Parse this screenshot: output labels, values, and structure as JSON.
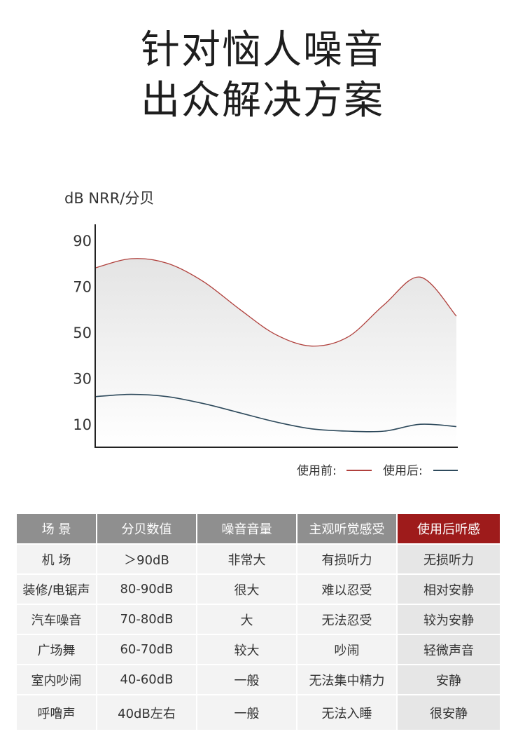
{
  "headline": {
    "line1": "针对恼人噪音",
    "line2": "出众解决方案"
  },
  "chart_data": {
    "type": "area",
    "ylabel": "dB NRR/分贝",
    "yticks": [
      90,
      70,
      50,
      30,
      10
    ],
    "ylim": [
      0,
      100
    ],
    "x": [
      0,
      1,
      2,
      3,
      4,
      5,
      6,
      7,
      8,
      9,
      10
    ],
    "series": [
      {
        "name": "使用前:",
        "color": "#b0403c",
        "values": [
          78,
          82,
          80,
          72,
          60,
          49,
          44,
          48,
          62,
          74,
          57
        ]
      },
      {
        "name": "使用后:",
        "color": "#2e4a5c",
        "values": [
          22,
          23,
          22,
          19,
          15,
          11,
          8,
          7,
          7,
          10,
          9
        ]
      }
    ],
    "legend": "bottom-right",
    "grid": false
  },
  "table": {
    "headers": [
      "场  景",
      "分贝数值",
      "噪音音量",
      "主观听觉感受",
      "使用后听感"
    ],
    "highlight_color": "#9e1b1b",
    "rows": [
      [
        "机  场",
        "＞90dB",
        "非常大",
        "有损听力",
        "无损听力"
      ],
      [
        "装修/电锯声",
        "80-90dB",
        "很大",
        "难以忍受",
        "相对安静"
      ],
      [
        "汽车噪音",
        "70-80dB",
        "大",
        "无法忍受",
        "较为安静"
      ],
      [
        "广场舞",
        "60-70dB",
        "较大",
        "吵闹",
        "轻微声音"
      ],
      [
        "室内吵闹",
        "40-60dB",
        "一般",
        "无法集中精力",
        "安静"
      ],
      [
        "呼噜声",
        "40dB左右",
        "一般",
        "无法入睡",
        "很安静"
      ]
    ]
  }
}
